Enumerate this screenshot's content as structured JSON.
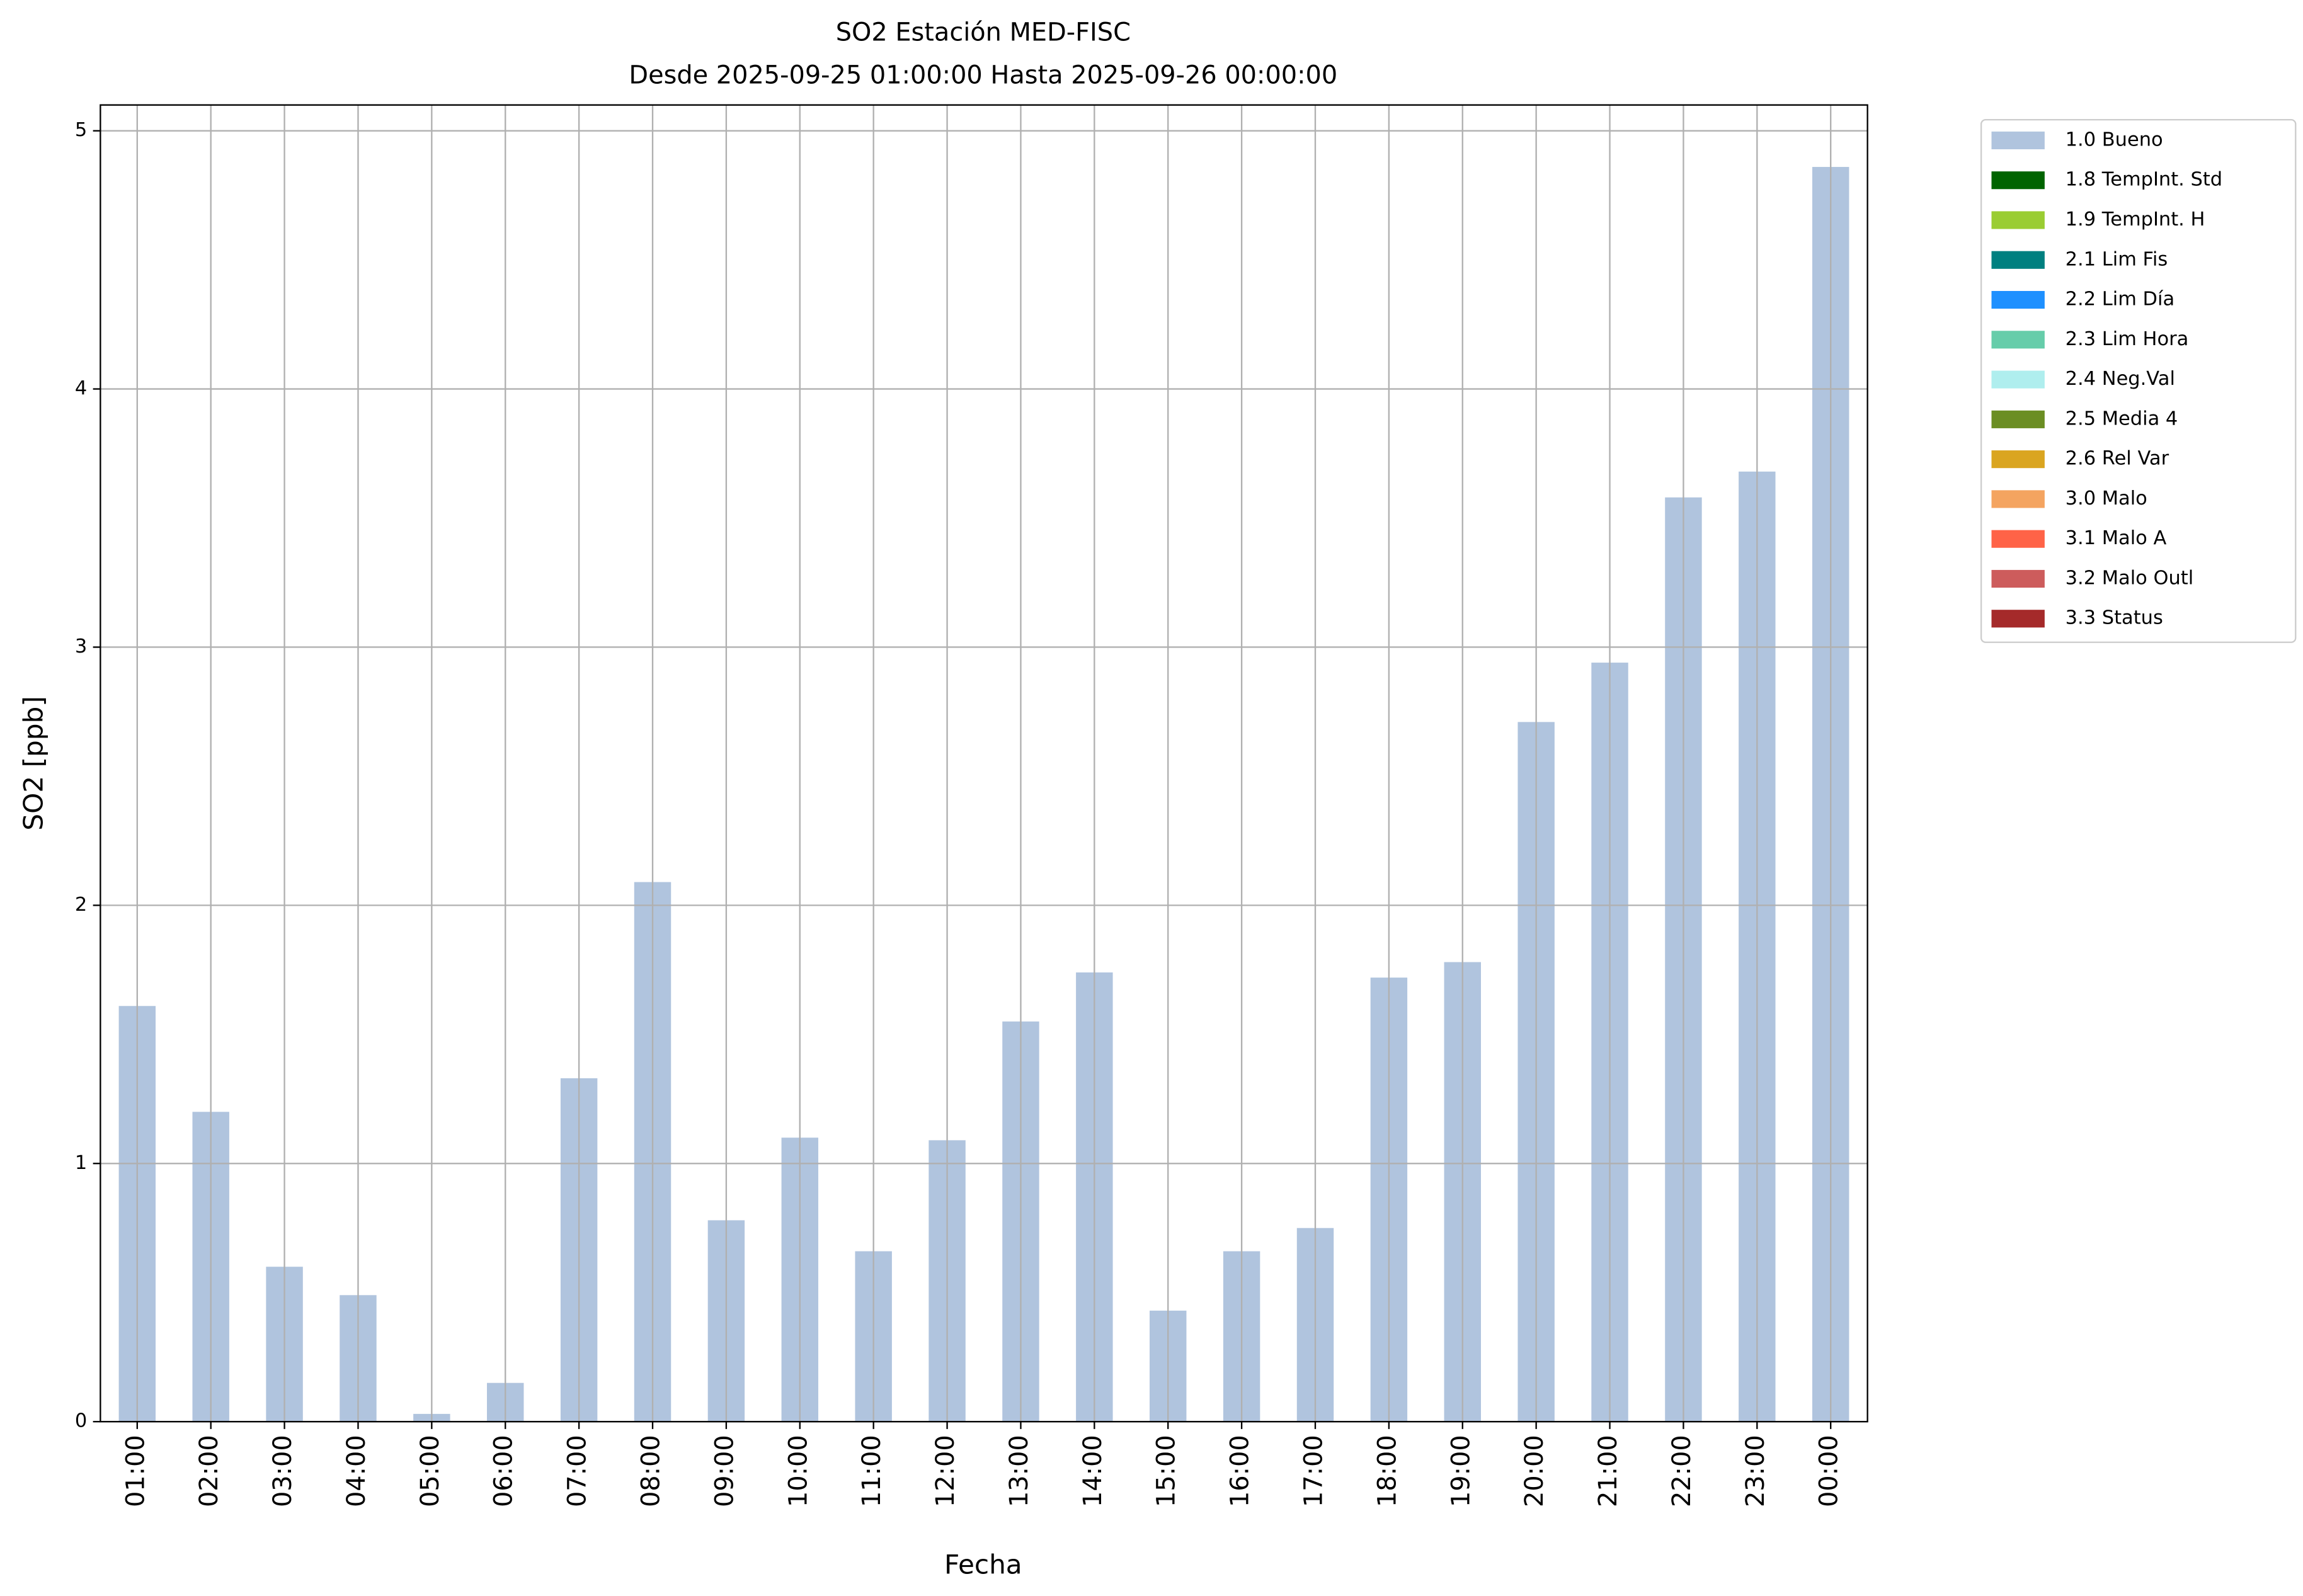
{
  "chart_data": {
    "type": "bar",
    "stacked": true,
    "title": "SO2 Estación MED-FISC",
    "subtitle": "Desde 2025-09-25 01:00:00 Hasta 2025-09-26 00:00:00",
    "x_label": "Fecha",
    "y_label": "SO2 [ppb]",
    "categories": [
      "01:00",
      "02:00",
      "03:00",
      "04:00",
      "05:00",
      "06:00",
      "07:00",
      "08:00",
      "09:00",
      "10:00",
      "11:00",
      "12:00",
      "13:00",
      "14:00",
      "15:00",
      "16:00",
      "17:00",
      "18:00",
      "19:00",
      "20:00",
      "21:00",
      "22:00",
      "23:00",
      "00:00"
    ],
    "series": [
      {
        "name": "1.0 Bueno",
        "color": "#b0c4de",
        "values": [
          1.61,
          1.2,
          0.6,
          0.49,
          0.03,
          0.15,
          1.33,
          2.09,
          0.78,
          1.1,
          0.66,
          1.09,
          1.55,
          1.74,
          0.43,
          0.66,
          0.75,
          1.72,
          1.78,
          2.71,
          2.94,
          3.58,
          3.68,
          4.86
        ]
      },
      {
        "name": "1.8 TempInt. Std",
        "color": "#006400",
        "values": [
          null,
          null,
          null,
          null,
          null,
          null,
          null,
          null,
          null,
          null,
          null,
          null,
          null,
          null,
          null,
          null,
          null,
          null,
          null,
          null,
          null,
          null,
          null,
          null
        ]
      },
      {
        "name": "1.9 TempInt. H",
        "color": "#9acd32",
        "values": [
          null,
          null,
          null,
          null,
          null,
          null,
          null,
          null,
          null,
          null,
          null,
          null,
          null,
          null,
          null,
          null,
          null,
          null,
          null,
          null,
          null,
          null,
          null,
          null
        ]
      },
      {
        "name": "2.1 Lim Fis",
        "color": "#008080",
        "values": [
          null,
          null,
          null,
          null,
          null,
          null,
          null,
          null,
          null,
          null,
          null,
          null,
          null,
          null,
          null,
          null,
          null,
          null,
          null,
          null,
          null,
          null,
          null,
          null
        ]
      },
      {
        "name": "2.2 Lim Día",
        "color": "#1e90ff",
        "values": [
          null,
          null,
          null,
          null,
          null,
          null,
          null,
          null,
          null,
          null,
          null,
          null,
          null,
          null,
          null,
          null,
          null,
          null,
          null,
          null,
          null,
          null,
          null,
          null
        ]
      },
      {
        "name": "2.3 Lim Hora",
        "color": "#66cdaa",
        "values": [
          null,
          null,
          null,
          null,
          null,
          null,
          null,
          null,
          null,
          null,
          null,
          null,
          null,
          null,
          null,
          null,
          null,
          null,
          null,
          null,
          null,
          null,
          null,
          null
        ]
      },
      {
        "name": "2.4 Neg.Val",
        "color": "#afeeee",
        "values": [
          null,
          null,
          null,
          null,
          null,
          null,
          null,
          null,
          null,
          null,
          null,
          null,
          null,
          null,
          null,
          null,
          null,
          null,
          null,
          null,
          null,
          null,
          null,
          null
        ]
      },
      {
        "name": "2.5 Media 4",
        "color": "#6b8e23",
        "values": [
          null,
          null,
          null,
          null,
          null,
          null,
          null,
          null,
          null,
          null,
          null,
          null,
          null,
          null,
          null,
          null,
          null,
          null,
          null,
          null,
          null,
          null,
          null,
          null
        ]
      },
      {
        "name": "2.6 Rel Var",
        "color": "#daa520",
        "values": [
          null,
          null,
          null,
          null,
          null,
          null,
          null,
          null,
          null,
          null,
          null,
          null,
          null,
          null,
          null,
          null,
          null,
          null,
          null,
          null,
          null,
          null,
          null,
          null
        ]
      },
      {
        "name": "3.0 Malo",
        "color": "#f4a460",
        "values": [
          null,
          null,
          null,
          null,
          null,
          null,
          null,
          null,
          null,
          null,
          null,
          null,
          null,
          null,
          null,
          null,
          null,
          null,
          null,
          null,
          null,
          null,
          null,
          null
        ]
      },
      {
        "name": "3.1 Malo A",
        "color": "#ff6347",
        "values": [
          null,
          null,
          null,
          null,
          null,
          null,
          null,
          null,
          null,
          null,
          null,
          null,
          null,
          null,
          null,
          null,
          null,
          null,
          null,
          null,
          null,
          null,
          null,
          null
        ]
      },
      {
        "name": "3.2 Malo Outl",
        "color": "#cd5c5c",
        "values": [
          null,
          null,
          null,
          null,
          null,
          null,
          null,
          null,
          null,
          null,
          null,
          null,
          null,
          null,
          null,
          null,
          null,
          null,
          null,
          null,
          null,
          null,
          null,
          null
        ]
      },
      {
        "name": "3.3 Status",
        "color": "#a52a2a",
        "values": [
          null,
          null,
          null,
          null,
          null,
          null,
          null,
          null,
          null,
          null,
          null,
          null,
          null,
          null,
          null,
          null,
          null,
          null,
          null,
          null,
          null,
          null,
          null,
          null
        ]
      }
    ],
    "ylim": [
      0,
      5.1
    ],
    "yticks": [
      0,
      1,
      2,
      3,
      4,
      5
    ],
    "grid": true,
    "legend": "outside-upper-right"
  }
}
